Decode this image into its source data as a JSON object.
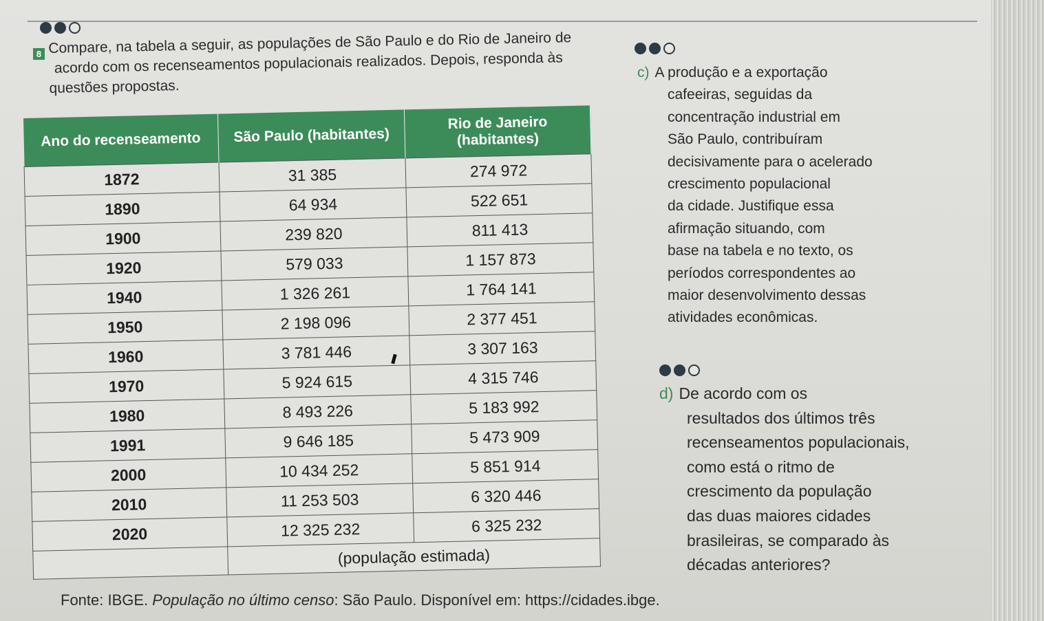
{
  "question_number": "8",
  "intro_lines": [
    "Compare, na tabela a seguir, as populações de São Paulo e do Rio de Janeiro de",
    "acordo com os recenseamentos populacionais realizados. Depois, responda às",
    "questões propostas."
  ],
  "table": {
    "headers": [
      "Ano do recenseamento",
      "São Paulo (habitantes)",
      "Rio de Janeiro (habitantes)"
    ],
    "rows": [
      [
        "1872",
        "31 385",
        "274 972"
      ],
      [
        "1890",
        "64 934",
        "522 651"
      ],
      [
        "1900",
        "239 820",
        "811 413"
      ],
      [
        "1920",
        "579 033",
        "1 157 873"
      ],
      [
        "1940",
        "1 326 261",
        "1 764 141"
      ],
      [
        "1950",
        "2 198 096",
        "2 377 451"
      ],
      [
        "1960",
        "3 781 446",
        "3 307 163"
      ],
      [
        "1970",
        "5 924 615",
        "4 315 746"
      ],
      [
        "1980",
        "8 493 226",
        "5 183 992"
      ],
      [
        "1991",
        "9 646 185",
        "5 473 909"
      ],
      [
        "2000",
        "10 434 252",
        "5 851 914"
      ],
      [
        "2010",
        "11 253 503",
        "6 320 446"
      ],
      [
        "2020",
        "12 325 232",
        "6 325 232"
      ]
    ],
    "note": "(população estimada)"
  },
  "source": {
    "prefix": "Fonte: IBGE. ",
    "title": "População no último censo",
    "suffix": ": São Paulo. Disponível em: https://cidades.ibge."
  },
  "question_c": {
    "label": "c)",
    "lines": [
      "A produção e a exportação",
      "cafeeiras, seguidas da",
      "concentração industrial em",
      "São Paulo, contribuíram",
      "decisivamente para o acelerado",
      "crescimento populacional",
      "da cidade. Justifique essa",
      "afirmação situando, com",
      "base na tabela e no texto, os",
      "períodos correspondentes ao",
      "maior desenvolvimento dessas",
      "atividades econômicas."
    ]
  },
  "question_d": {
    "label": "d)",
    "lines": [
      "De acordo com os",
      "resultados dos últimos três",
      "recenseamentos populacionais,",
      "como está o ritmo de",
      "crescimento da população",
      "das duas maiores cidades",
      "brasileiras, se comparado às",
      "décadas anteriores?"
    ]
  },
  "colors": {
    "accent": "#3c8c5a",
    "dot": "#2c3b44"
  },
  "difficulty_icons": [
    "dots-2-of-3",
    "dots-2-of-3",
    "dots-2-of-3"
  ]
}
